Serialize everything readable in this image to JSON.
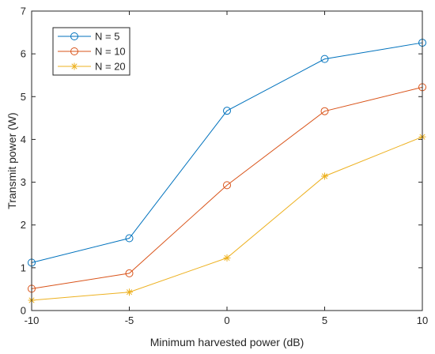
{
  "chart_data": {
    "type": "line",
    "title": "",
    "xlabel": "Minimum harvested power (dB)",
    "ylabel": "Transmit power (W)",
    "xlim": [
      -10,
      10
    ],
    "ylim": [
      0,
      7
    ],
    "x": [
      -10,
      -5,
      0,
      5,
      10
    ],
    "xticks": [
      "-10",
      "-5",
      "0",
      "5",
      "10"
    ],
    "yticks": [
      "0",
      "1",
      "2",
      "3",
      "4",
      "5",
      "6",
      "7"
    ],
    "grid": false,
    "legend_position": "top-left",
    "series": [
      {
        "name": "N = 5",
        "values": [
          1.12,
          1.69,
          4.67,
          5.88,
          6.26
        ],
        "color": "#0072BD",
        "marker": "circle"
      },
      {
        "name": "N = 10",
        "values": [
          0.51,
          0.87,
          2.93,
          4.66,
          5.22
        ],
        "color": "#D95319",
        "marker": "circle"
      },
      {
        "name": "N = 20",
        "values": [
          0.24,
          0.43,
          1.23,
          3.14,
          4.06
        ],
        "color": "#EDB120",
        "marker": "asterisk"
      }
    ]
  }
}
